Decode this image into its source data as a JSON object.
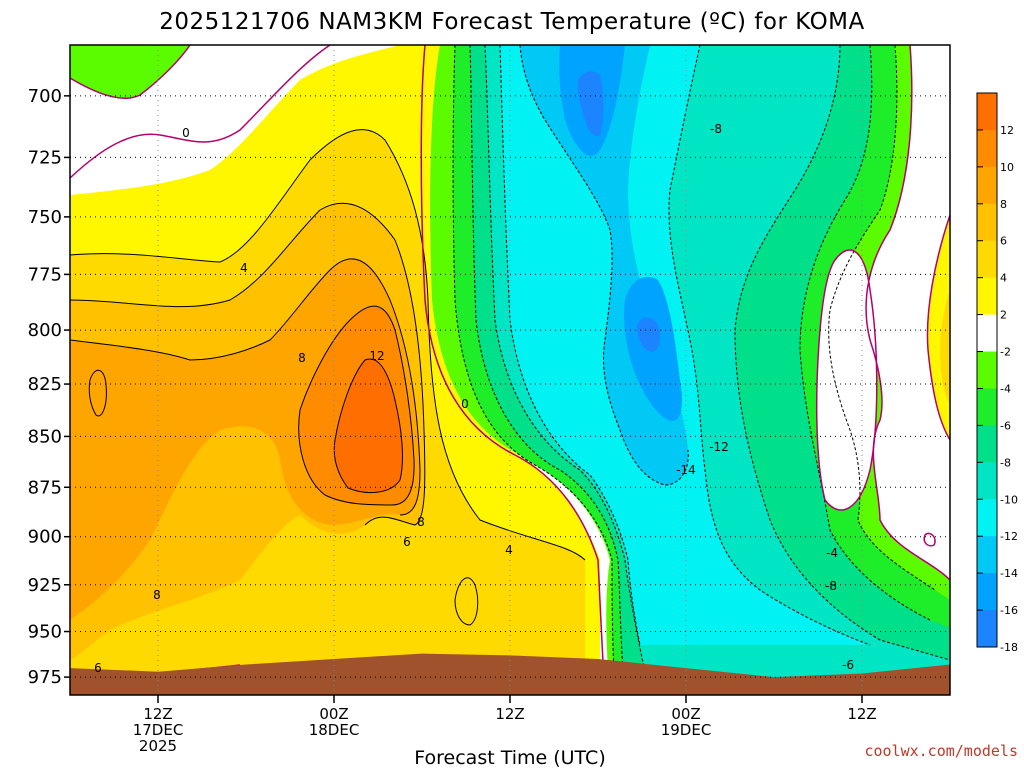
{
  "chart_data": {
    "type": "heatmap",
    "title": "2025121706 NAM3KM Forecast Temperature (ºC) for KOMA",
    "xlabel": "Forecast Time (UTC)",
    "ylabel": "",
    "y_scale": "log",
    "y_direction": "reversed",
    "y_ticks": [
      700,
      725,
      750,
      775,
      800,
      825,
      850,
      875,
      900,
      925,
      950,
      975
    ],
    "ylim": [
      985,
      680
    ],
    "x_ticks": [
      {
        "hour": 18,
        "lines": [
          "12Z",
          "17DEC",
          "2025"
        ]
      },
      {
        "hour": 30,
        "lines": [
          "00Z",
          "18DEC"
        ]
      },
      {
        "hour": 42,
        "lines": [
          "12Z"
        ]
      },
      {
        "hour": 54,
        "lines": [
          "00Z",
          "19DEC"
        ]
      },
      {
        "hour": 66,
        "lines": [
          "12Z"
        ]
      }
    ],
    "xlim": [
      12,
      72
    ],
    "grid": true,
    "colorbar": {
      "position": "right",
      "levels": [
        14,
        12,
        10,
        8,
        6,
        4,
        2,
        0,
        -2,
        -4,
        -6,
        -8,
        -10,
        -12,
        -14,
        -16,
        -18,
        -20
      ],
      "tick_labels": [
        "12",
        "10",
        "8",
        "6",
        "4",
        "2",
        "-2",
        "-4",
        "-6",
        "-8",
        "-10",
        "-12",
        "-14",
        "-16",
        "-18"
      ],
      "colors": [
        "#ff6e00",
        "#ff8b00",
        "#ffa500",
        "#ffc100",
        "#ffda00",
        "#fff700",
        "#ffffff",
        "#5cfc00",
        "#1eee2a",
        "#00e08a",
        "#00e6c4",
        "#00f2f2",
        "#00c9f5",
        "#00a3ff",
        "#1c84ff"
      ]
    },
    "contour_labels": [
      "0",
      "4",
      "8",
      "12",
      "0",
      "8",
      "6",
      "4",
      "8",
      "6",
      "-8",
      "-12",
      "-14",
      "-4",
      "-8",
      "-6"
    ],
    "ground_color": "#a0522d",
    "series": [
      {
        "name": "",
        "x": [
          12,
          18,
          24,
          30,
          36,
          42,
          48,
          54,
          60,
          66,
          72
        ],
        "y": [
          970,
          972,
          968,
          965,
          962,
          963,
          965,
          970,
          975,
          973,
          968
        ]
      }
    ]
  },
  "credit": "coolwx.com/models"
}
